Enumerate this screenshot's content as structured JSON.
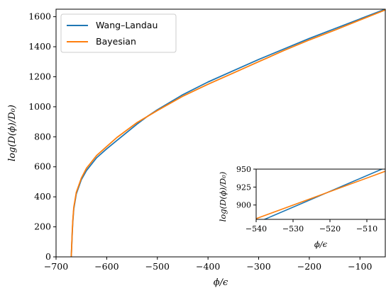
{
  "chart_data": [
    {
      "id": "main",
      "type": "line",
      "title": "",
      "xlabel": "ϕ/ϵ",
      "ylabel": "log(D(ϕ)/D₀)",
      "xlim": [
        -700,
        -50
      ],
      "ylim": [
        0,
        1650
      ],
      "xticks": [
        -700,
        -600,
        -500,
        -400,
        -300,
        -200,
        -100
      ],
      "xtick_labels": [
        "−700",
        "−600",
        "−500",
        "−400",
        "−300",
        "−200",
        "−100"
      ],
      "yticks": [
        0,
        200,
        400,
        600,
        800,
        1000,
        1200,
        1400,
        1600
      ],
      "ytick_labels": [
        "0",
        "200",
        "400",
        "600",
        "800",
        "1000",
        "1200",
        "1400",
        "1600"
      ],
      "grid": false,
      "legend": "top-left",
      "series": [
        {
          "name": "Wang–Landau",
          "color": "#1f77b4",
          "x": [
            -670,
            -669,
            -668,
            -667,
            -665,
            -660,
            -650,
            -640,
            -620,
            -600,
            -580,
            -560,
            -540,
            -520,
            -500,
            -450,
            -400,
            -350,
            -300,
            -250,
            -200,
            -150,
            -100,
            -50
          ],
          "y": [
            0,
            80,
            160,
            230,
            320,
            420,
            515,
            575,
            660,
            720,
            775,
            830,
            885,
            935,
            980,
            1080,
            1165,
            1240,
            1315,
            1385,
            1455,
            1520,
            1585,
            1650
          ]
        },
        {
          "name": "Bayesian",
          "color": "#ff7f0e",
          "x": [
            -670,
            -669,
            -668,
            -667,
            -665,
            -660,
            -650,
            -640,
            -620,
            -600,
            -580,
            -560,
            -540,
            -520,
            -500,
            -450,
            -400,
            -350,
            -300,
            -250,
            -200,
            -150,
            -100,
            -50
          ],
          "y": [
            0,
            85,
            170,
            240,
            330,
            430,
            525,
            590,
            675,
            735,
            795,
            845,
            895,
            935,
            975,
            1070,
            1150,
            1225,
            1300,
            1375,
            1445,
            1510,
            1578,
            1645
          ]
        }
      ]
    },
    {
      "id": "inset",
      "type": "line",
      "title": "",
      "xlabel": "ϕ/ϵ",
      "ylabel": "log(D(ϕ)/D₀)",
      "xlim": [
        -540,
        -505
      ],
      "ylim": [
        880,
        950
      ],
      "xticks": [
        -540,
        -530,
        -520,
        -510
      ],
      "xtick_labels": [
        "−540",
        "−530",
        "−520",
        "−510"
      ],
      "yticks": [
        900,
        925,
        950
      ],
      "ytick_labels": [
        "900",
        "925",
        "950"
      ],
      "grid": false,
      "series": [
        {
          "name": "Wang–Landau",
          "color": "#1f77b4",
          "x": [
            -540,
            -505
          ],
          "y": [
            875,
            952
          ]
        },
        {
          "name": "Bayesian",
          "color": "#ff7f0e",
          "x": [
            -540,
            -505
          ],
          "y": [
            881,
            947
          ]
        }
      ]
    }
  ]
}
